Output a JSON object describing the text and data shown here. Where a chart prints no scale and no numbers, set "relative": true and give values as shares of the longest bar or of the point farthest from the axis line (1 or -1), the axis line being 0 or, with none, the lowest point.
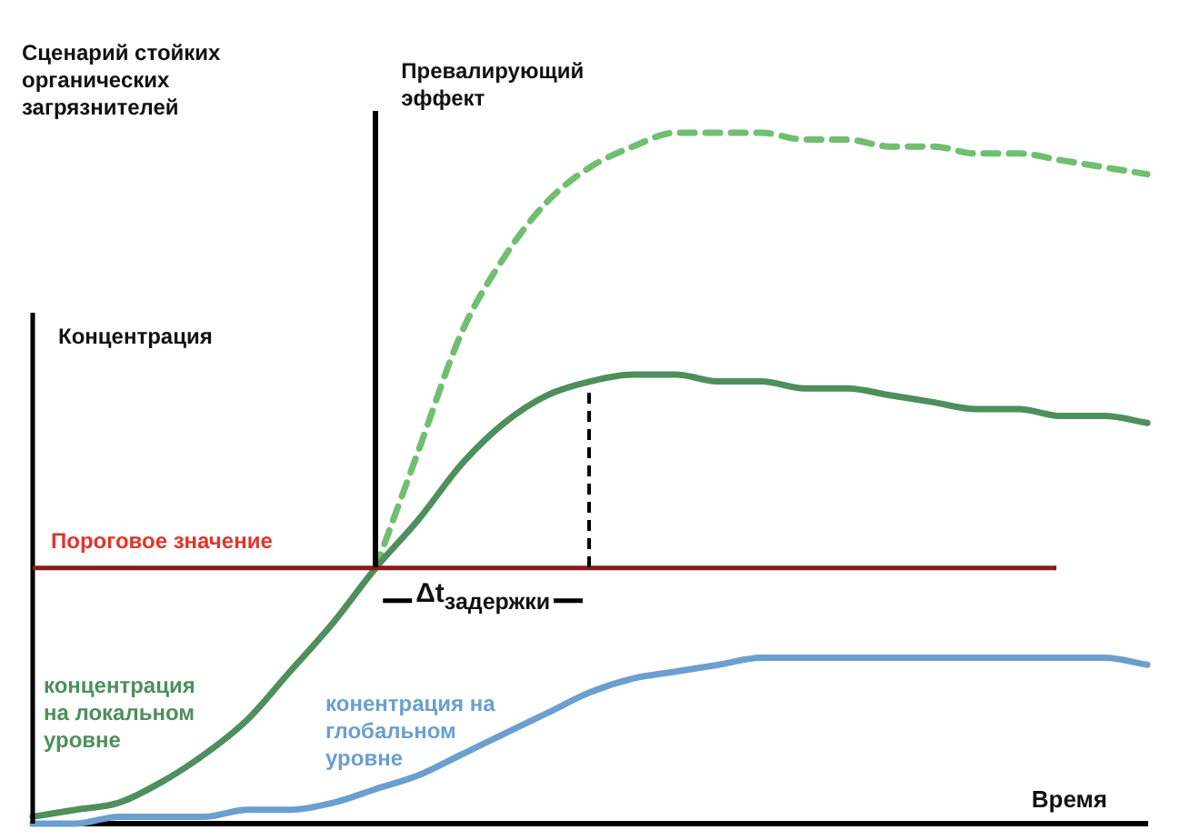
{
  "chart_data": {
    "type": "line",
    "title": "Сценарий стойких органических загрязнителей",
    "ylabel": "Концентрация",
    "xlabel": "Время",
    "relative": true,
    "marker": "none",
    "legend": false,
    "grid": false,
    "categories": [
      null,
      null,
      null,
      null,
      null,
      null,
      null,
      null,
      null,
      null,
      null,
      null,
      null,
      null,
      null,
      null,
      null,
      null,
      null,
      null,
      null,
      null,
      null,
      null,
      null,
      null,
      null
    ],
    "series": [
      {
        "name": "концентрация на локальном уровне",
        "color": "#4e8f5c",
        "values": [
          0.01,
          0.02,
          0.03,
          0.06,
          0.1,
          0.15,
          0.22,
          0.29,
          0.37,
          0.44,
          0.52,
          0.58,
          0.62,
          0.64,
          0.65,
          0.65,
          0.64,
          0.64,
          0.63,
          0.63,
          0.62,
          0.61,
          0.6,
          0.6,
          0.59,
          0.59,
          0.58
        ]
      },
      {
        "name": "конентрация на глобальном уровне",
        "color": "#6a9fcf",
        "values": [
          0,
          0,
          0.01,
          0.01,
          0.01,
          0.02,
          0.02,
          0.03,
          0.05,
          0.07,
          0.1,
          0.13,
          0.16,
          0.19,
          0.21,
          0.22,
          0.23,
          0.24,
          0.24,
          0.24,
          0.24,
          0.24,
          0.24,
          0.24,
          0.24,
          0.24,
          0.23
        ]
      },
      {
        "color": "#6fbf6f",
        "line_style": "dashed",
        "values": [
          null,
          null,
          null,
          null,
          null,
          null,
          null,
          null,
          0.37,
          0.54,
          0.71,
          0.82,
          0.9,
          0.95,
          0.98,
          1.0,
          1.0,
          1.0,
          0.99,
          0.99,
          0.98,
          0.98,
          0.97,
          0.97,
          0.96,
          0.95,
          0.94
        ]
      }
    ],
    "ref_lines": [
      {
        "axis": "y",
        "value": 0.37,
        "label": "Пороговое значение",
        "color": "#8b1a1a"
      }
    ],
    "annotations": [
      "Превалирующий эффект",
      "Δt$_{задержки}$"
    ]
  }
}
